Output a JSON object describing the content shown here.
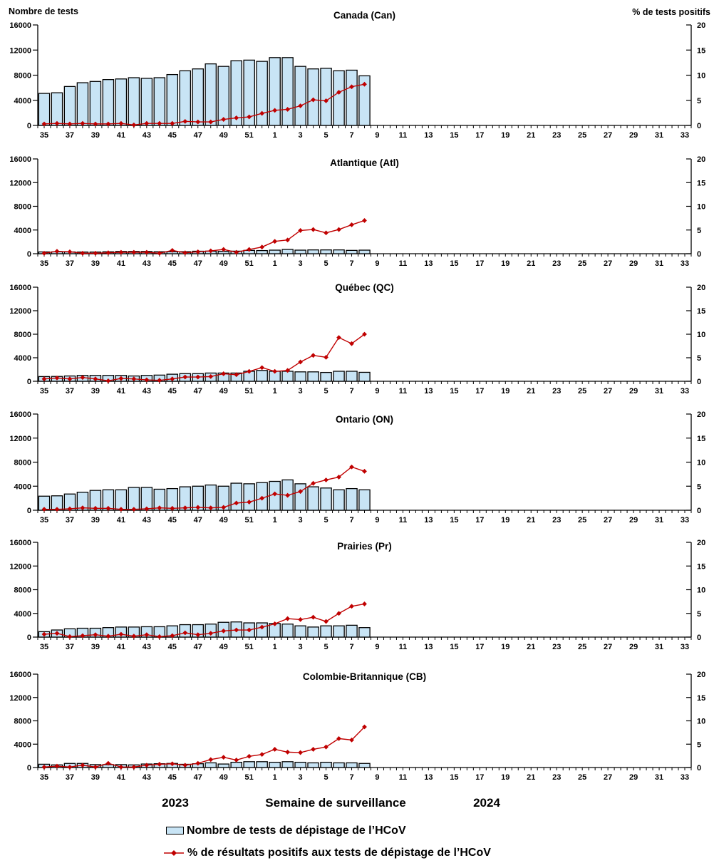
{
  "footer": {
    "year_left": "2023",
    "x_axis_label": "Semaine de surveillance",
    "year_right": "2024"
  },
  "legend": {
    "bars_label": "Nombre de tests de dépistage de l’HCoV",
    "line_label": "% de résultats positifs aux tests de dépistage de l’HCoV"
  },
  "colors": {
    "bar_fill": "#C8E4F5",
    "bar_stroke": "#000000",
    "line": "#C00000",
    "axis": "#000000",
    "text": "#000000",
    "background": "#FFFFFF"
  },
  "chart_data": {
    "type": "bar",
    "subtype": "small-multiples dual-axis combo (bars = number of tests, line = % positive)",
    "x_weeks": [
      "35",
      "36",
      "37",
      "38",
      "39",
      "40",
      "41",
      "42",
      "43",
      "44",
      "45",
      "46",
      "47",
      "48",
      "49",
      "50",
      "51",
      "52",
      "1",
      "2",
      "3",
      "4",
      "5",
      "6",
      "7",
      "8",
      "9",
      "10",
      "11",
      "12",
      "13",
      "14",
      "15",
      "16",
      "17",
      "18",
      "19",
      "20",
      "21",
      "22",
      "23",
      "24",
      "25",
      "26",
      "27",
      "28",
      "29",
      "30",
      "31",
      "32",
      "33"
    ],
    "x_labeled_ticks": [
      "35",
      "37",
      "39",
      "41",
      "43",
      "45",
      "47",
      "49",
      "51",
      "1",
      "3",
      "5",
      "7",
      "9",
      "11",
      "13",
      "15",
      "17",
      "19",
      "21",
      "23",
      "25",
      "27",
      "29",
      "31",
      "33"
    ],
    "data_weeks_span": "2023 semaine 35 à 2024 semaine 8 (26 semaines)",
    "left_axis": {
      "label": "Nombre de tests",
      "min": 0,
      "max": 16000,
      "ticks": [
        0,
        4000,
        8000,
        12000,
        16000
      ]
    },
    "right_axis": {
      "label": "% de tests positifs",
      "min": 0,
      "max": 20,
      "ticks": [
        0,
        5,
        10,
        15,
        20
      ]
    },
    "legend_entries": [
      "Nombre de tests de dépistage de l’HCoV",
      "% de résultats positifs aux tests de dépistage de l’HCoV"
    ],
    "panels": [
      {
        "id": "canada",
        "title": "Canada (Can)",
        "tests": [
          5100,
          5200,
          6200,
          6800,
          7000,
          7300,
          7400,
          7600,
          7500,
          7600,
          8100,
          8700,
          9000,
          9800,
          9400,
          10300,
          10400,
          10200,
          10800,
          10800,
          9400,
          9000,
          9100,
          8700,
          8800,
          7900
        ],
        "pct_positive": [
          0.3,
          0.4,
          0.3,
          0.4,
          0.3,
          0.3,
          0.4,
          0.1,
          0.4,
          0.4,
          0.4,
          0.8,
          0.7,
          0.7,
          1.2,
          1.5,
          1.7,
          2.4,
          3.0,
          3.2,
          3.9,
          5.1,
          4.9,
          6.6,
          7.7,
          8.2
        ]
      },
      {
        "id": "atlantique",
        "title": "Atlantique (Atl)",
        "tests": [
          300,
          320,
          300,
          280,
          280,
          320,
          380,
          380,
          380,
          330,
          340,
          340,
          420,
          430,
          400,
          430,
          560,
          530,
          600,
          720,
          600,
          640,
          640,
          640,
          560,
          600
        ],
        "pct_positive": [
          0.1,
          0.5,
          0.4,
          0.1,
          0.1,
          0.2,
          0.3,
          0.3,
          0.3,
          0.1,
          0.7,
          0.2,
          0.4,
          0.6,
          0.9,
          0.3,
          0.9,
          1.4,
          2.6,
          2.9,
          4.9,
          5.1,
          4.4,
          5.1,
          6.1,
          7.0
        ]
      },
      {
        "id": "quebec",
        "title": "Québec (QC)",
        "tests": [
          800,
          820,
          900,
          1000,
          1000,
          1000,
          1000,
          900,
          1000,
          1050,
          1200,
          1300,
          1300,
          1400,
          1400,
          1400,
          1700,
          1840,
          1700,
          1700,
          1600,
          1600,
          1500,
          1700,
          1700,
          1520
        ],
        "pct_positive": [
          0.5,
          0.7,
          0.5,
          0.8,
          0.5,
          0.1,
          0.6,
          0.5,
          0.3,
          0.2,
          0.5,
          0.9,
          0.9,
          1.0,
          1.6,
          1.4,
          2.1,
          2.9,
          2.1,
          2.3,
          4.1,
          5.5,
          5.1,
          9.3,
          8.0,
          10.0
        ]
      },
      {
        "id": "ontario",
        "title": "Ontario (ON)",
        "tests": [
          2340,
          2400,
          2700,
          3000,
          3300,
          3400,
          3400,
          3800,
          3800,
          3500,
          3600,
          3900,
          4000,
          4200,
          4000,
          4500,
          4400,
          4600,
          4800,
          5050,
          4400,
          3900,
          3700,
          3400,
          3600,
          3400
        ],
        "pct_positive": [
          0.2,
          0.2,
          0.3,
          0.5,
          0.4,
          0.4,
          0.2,
          0.2,
          0.3,
          0.5,
          0.4,
          0.5,
          0.6,
          0.5,
          0.6,
          1.5,
          1.7,
          2.5,
          3.4,
          3.1,
          3.9,
          5.6,
          6.3,
          6.9,
          9.0,
          8.1
        ]
      },
      {
        "id": "prairies",
        "title": "Prairies (Pr)",
        "tests": [
          920,
          1200,
          1400,
          1500,
          1500,
          1600,
          1700,
          1700,
          1750,
          1750,
          1900,
          2100,
          2100,
          2200,
          2500,
          2560,
          2400,
          2400,
          2300,
          2200,
          1900,
          1700,
          1900,
          1900,
          2000,
          1600
        ],
        "pct_positive": [
          0.6,
          0.8,
          0.1,
          0.3,
          0.5,
          0.2,
          0.6,
          0.2,
          0.5,
          0.1,
          0.3,
          0.9,
          0.5,
          0.8,
          1.3,
          1.5,
          1.5,
          2.1,
          2.8,
          3.9,
          3.7,
          4.2,
          3.3,
          5.0,
          6.5,
          7.0
        ]
      },
      {
        "id": "colombie-britannique",
        "title": "Colombie-Britannique (CB)",
        "tests": [
          560,
          450,
          700,
          700,
          500,
          500,
          500,
          450,
          600,
          650,
          700,
          550,
          650,
          800,
          600,
          900,
          1000,
          1000,
          900,
          1000,
          900,
          800,
          900,
          800,
          800,
          700
        ],
        "pct_positive": [
          0.1,
          0.3,
          0.1,
          0.5,
          0.1,
          0.9,
          0.1,
          0.1,
          0.5,
          0.7,
          0.8,
          0.5,
          0.9,
          1.7,
          2.2,
          1.6,
          2.4,
          2.8,
          3.9,
          3.3,
          3.2,
          3.9,
          4.4,
          6.2,
          5.9,
          8.7
        ]
      }
    ]
  }
}
